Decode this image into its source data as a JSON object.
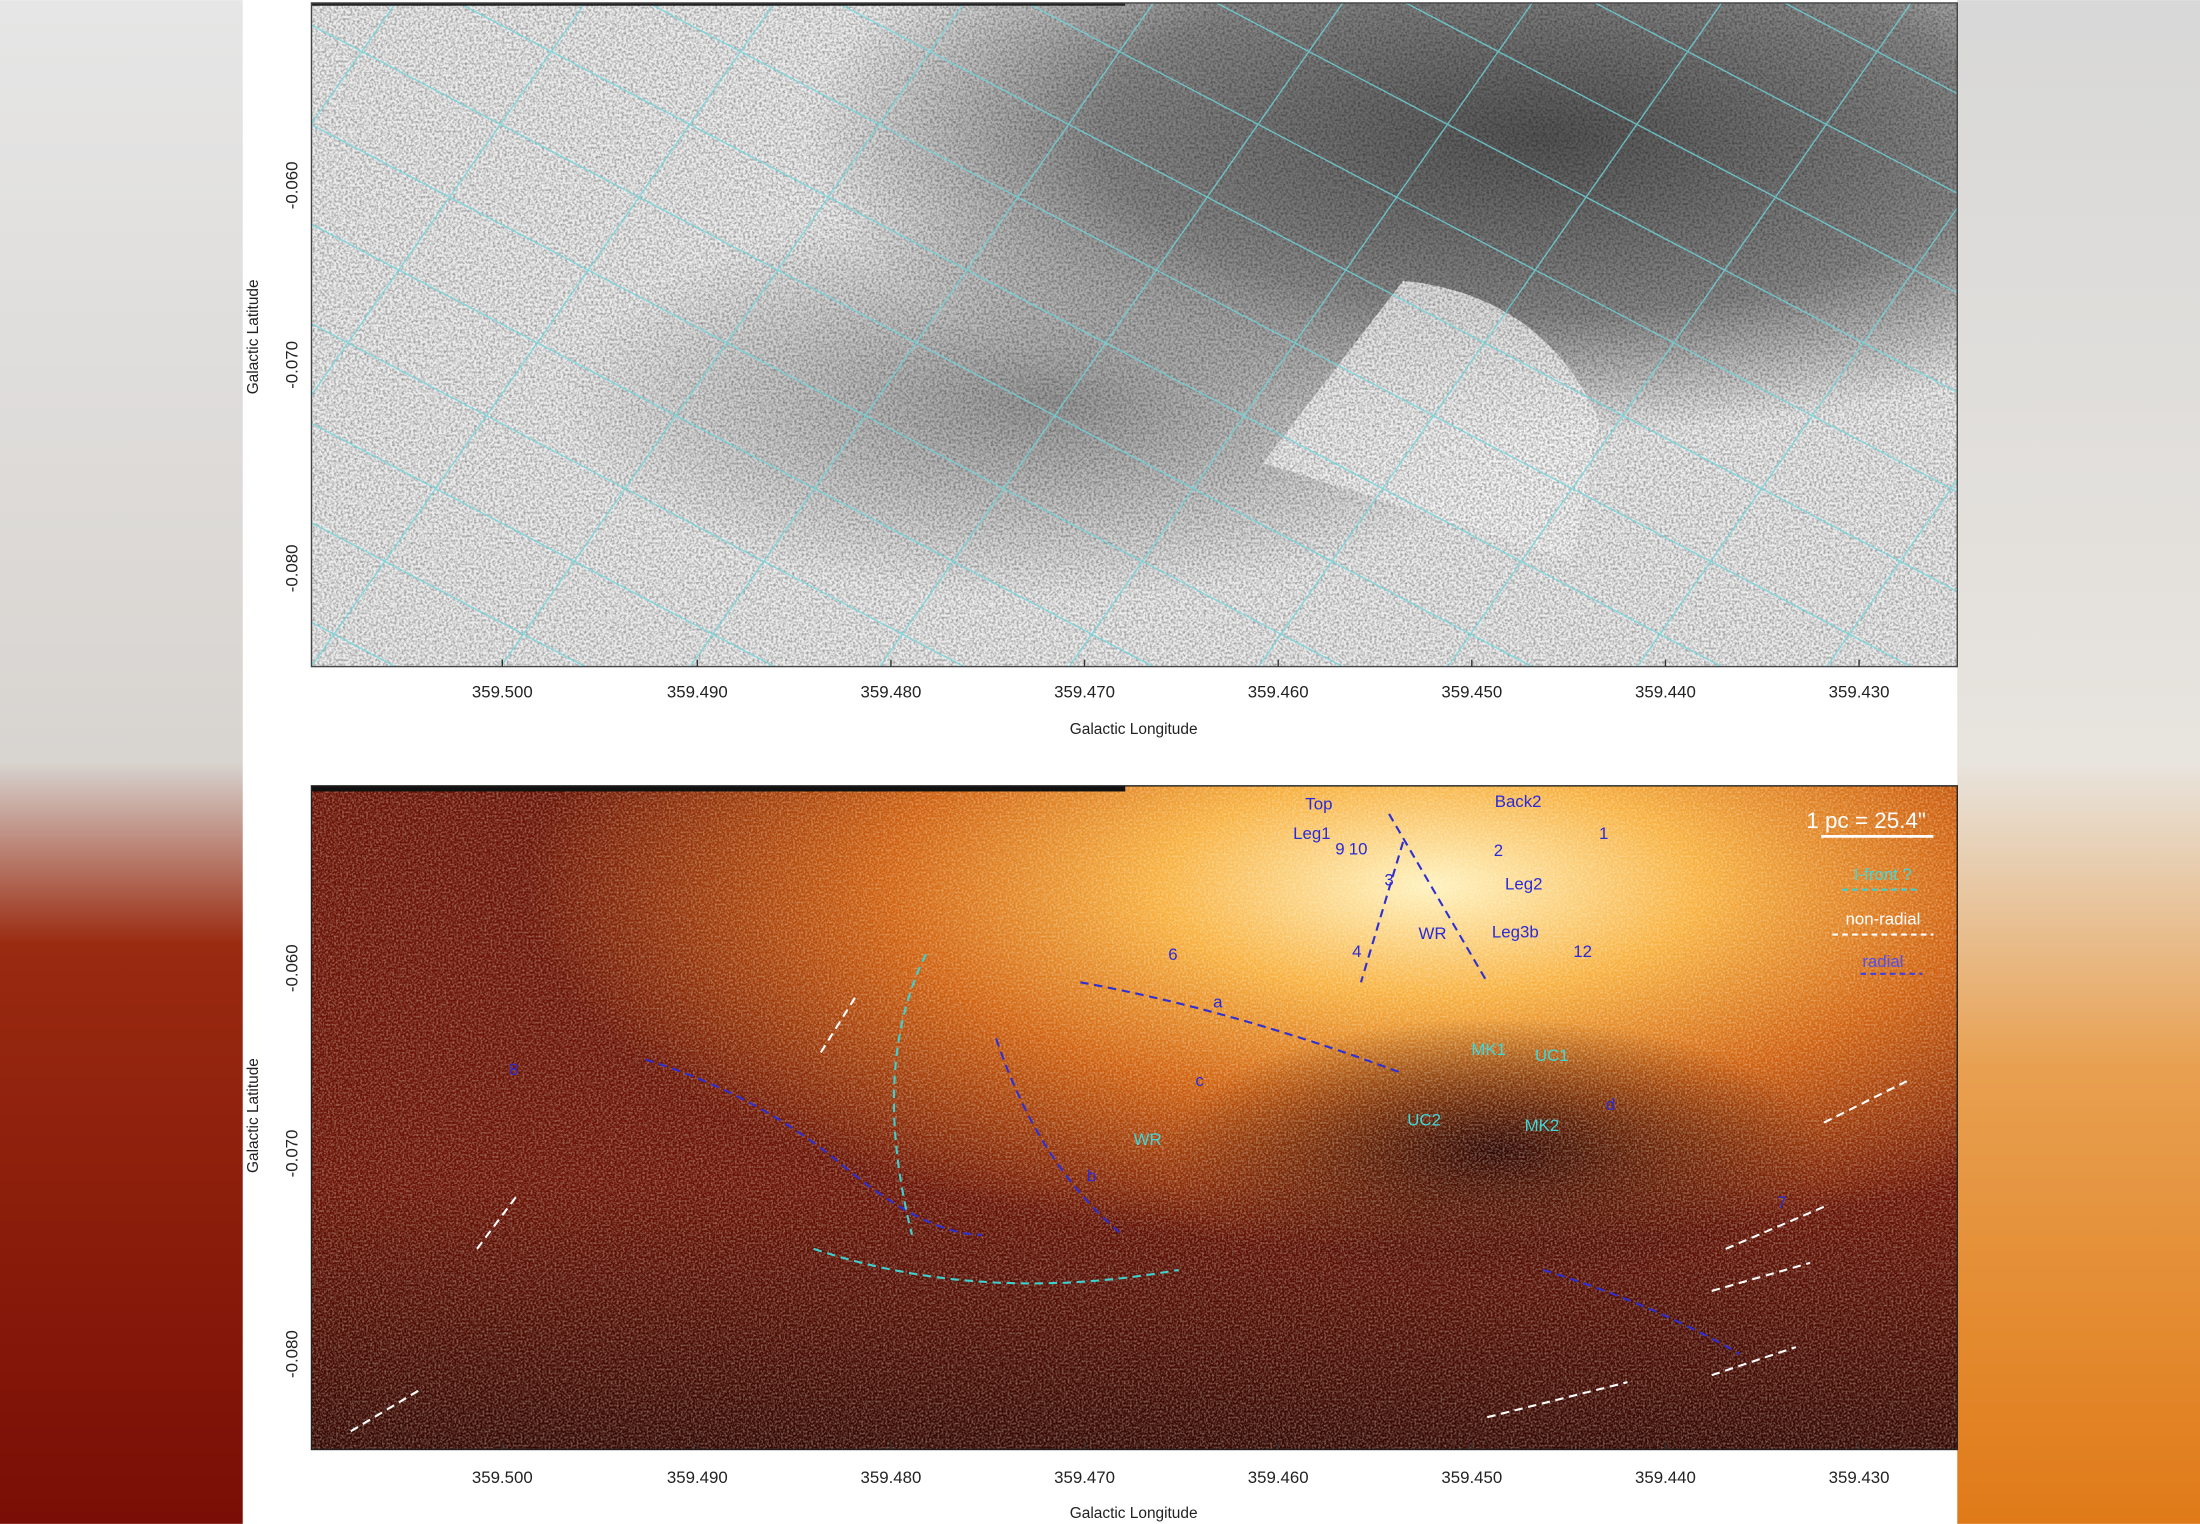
{
  "panels": [
    {
      "x_axis_label": "Galactic Longitude",
      "y_axis_label": "Galactic Latitude",
      "x_tick_labels": [
        "359.500",
        "359.490",
        "359.480",
        "359.470",
        "359.460",
        "359.450",
        "359.440",
        "359.430"
      ],
      "y_tick_labels": [
        "-0.060",
        "-0.070",
        "-0.080"
      ]
    },
    {
      "x_axis_label": "Galactic Longitude",
      "y_axis_label": "Galactic Latitude",
      "x_tick_labels": [
        "359.500",
        "359.490",
        "359.480",
        "359.470",
        "359.460",
        "359.450",
        "359.440",
        "359.430"
      ],
      "y_tick_labels": [
        "-0.060",
        "-0.070",
        "-0.080"
      ],
      "annotations": [
        "Top",
        "Leg1",
        "Back2",
        "2",
        "Leg2",
        "1",
        "3",
        "4",
        "WR",
        "Leg3b",
        "9",
        "10",
        "12",
        "6",
        "a",
        "c",
        "b",
        "d",
        "MK1",
        "UC1",
        "UC2",
        "MK2",
        "WR",
        "7",
        "8"
      ],
      "scale_bar": "1 pc = 25.4\"",
      "legend": [
        "I-front ?",
        "non-radial",
        "radial"
      ]
    }
  ]
}
